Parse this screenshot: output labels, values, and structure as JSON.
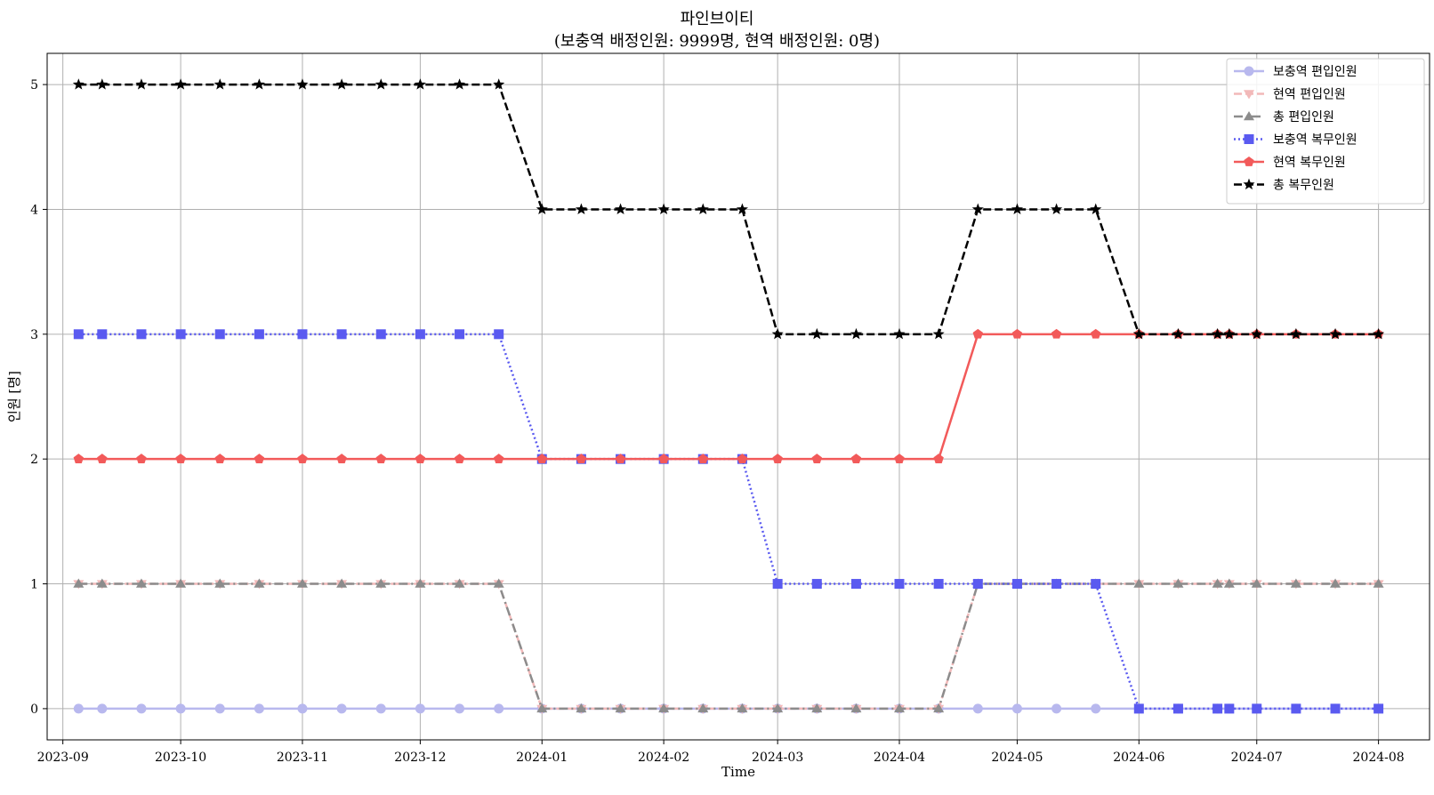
{
  "chart_data": {
    "type": "line",
    "title": "파인브이티",
    "subtitle": "(보충역 배정인원: 9999명, 현역 배정인원: 0명)",
    "xlabel": "Time",
    "ylabel": "인원 [명]",
    "xlim": [
      "2023-08-28",
      "2024-08-14"
    ],
    "ylim": [
      -0.25,
      5.25
    ],
    "yticks": [
      0,
      1,
      2,
      3,
      4,
      5
    ],
    "xticks": [
      "2023-09-01",
      "2023-10-01",
      "2023-11-01",
      "2023-12-01",
      "2024-01-01",
      "2024-02-01",
      "2024-03-01",
      "2024-04-01",
      "2024-05-01",
      "2024-06-01",
      "2024-07-01",
      "2024-08-01"
    ],
    "xtick_labels": [
      "2023-09",
      "2023-10",
      "2023-11",
      "2023-12",
      "2024-01",
      "2024-02",
      "2024-03",
      "2024-04",
      "2024-05",
      "2024-06",
      "2024-07",
      "2024-08"
    ],
    "grid": true,
    "legend_position": "top-right",
    "x": [
      "2023-09-05",
      "2023-09-11",
      "2023-09-21",
      "2023-10-01",
      "2023-10-11",
      "2023-10-21",
      "2023-11-01",
      "2023-11-11",
      "2023-11-21",
      "2023-12-01",
      "2023-12-11",
      "2023-12-21",
      "2024-01-01",
      "2024-01-11",
      "2024-01-21",
      "2024-02-01",
      "2024-02-11",
      "2024-02-21",
      "2024-03-01",
      "2024-03-11",
      "2024-03-21",
      "2024-04-01",
      "2024-04-11",
      "2024-04-21",
      "2024-05-01",
      "2024-05-11",
      "2024-05-21",
      "2024-06-01",
      "2024-06-11",
      "2024-06-21",
      "2024-06-24",
      "2024-07-01",
      "2024-07-11",
      "2024-07-21",
      "2024-08-01"
    ],
    "series": [
      {
        "name": "보충역 편입인원",
        "color": "#b8b8ee",
        "dash": "solid",
        "marker": "circle",
        "values": [
          0,
          0,
          0,
          0,
          0,
          0,
          0,
          0,
          0,
          0,
          0,
          0,
          0,
          0,
          0,
          0,
          0,
          0,
          0,
          0,
          0,
          0,
          0,
          0,
          0,
          0,
          0,
          0,
          0,
          0,
          0,
          0,
          0,
          0,
          0
        ]
      },
      {
        "name": "현역 편입인원",
        "color": "#f2b9b9",
        "dash": "dashed",
        "marker": "triangle-down",
        "values": [
          1,
          1,
          1,
          1,
          1,
          1,
          1,
          1,
          1,
          1,
          1,
          1,
          0,
          0,
          0,
          0,
          0,
          0,
          0,
          0,
          0,
          0,
          0,
          1,
          1,
          1,
          1,
          1,
          1,
          1,
          1,
          1,
          1,
          1,
          1
        ]
      },
      {
        "name": "총 편입인원",
        "color": "#8c8c8c",
        "dash": "dashdot",
        "marker": "triangle-up",
        "values": [
          1,
          1,
          1,
          1,
          1,
          1,
          1,
          1,
          1,
          1,
          1,
          1,
          0,
          0,
          0,
          0,
          0,
          0,
          0,
          0,
          0,
          0,
          0,
          1,
          1,
          1,
          1,
          1,
          1,
          1,
          1,
          1,
          1,
          1,
          1
        ]
      },
      {
        "name": "보충역 복무인원",
        "color": "#5a5af0",
        "dash": "dotted",
        "marker": "square",
        "values": [
          3,
          3,
          3,
          3,
          3,
          3,
          3,
          3,
          3,
          3,
          3,
          3,
          2,
          2,
          2,
          2,
          2,
          2,
          1,
          1,
          1,
          1,
          1,
          1,
          1,
          1,
          1,
          0,
          0,
          0,
          0,
          0,
          0,
          0,
          0
        ]
      },
      {
        "name": "현역 복무인원",
        "color": "#f25a5a",
        "dash": "solid",
        "marker": "pentagon",
        "values": [
          2,
          2,
          2,
          2,
          2,
          2,
          2,
          2,
          2,
          2,
          2,
          2,
          2,
          2,
          2,
          2,
          2,
          2,
          2,
          2,
          2,
          2,
          2,
          3,
          3,
          3,
          3,
          3,
          3,
          3,
          3,
          3,
          3,
          3,
          3
        ]
      },
      {
        "name": "총 복무인원",
        "color": "#000000",
        "dash": "dashed",
        "marker": "star",
        "values": [
          5,
          5,
          5,
          5,
          5,
          5,
          5,
          5,
          5,
          5,
          5,
          5,
          4,
          4,
          4,
          4,
          4,
          4,
          3,
          3,
          3,
          3,
          3,
          4,
          4,
          4,
          4,
          3,
          3,
          3,
          3,
          3,
          3,
          3,
          3
        ]
      }
    ]
  }
}
